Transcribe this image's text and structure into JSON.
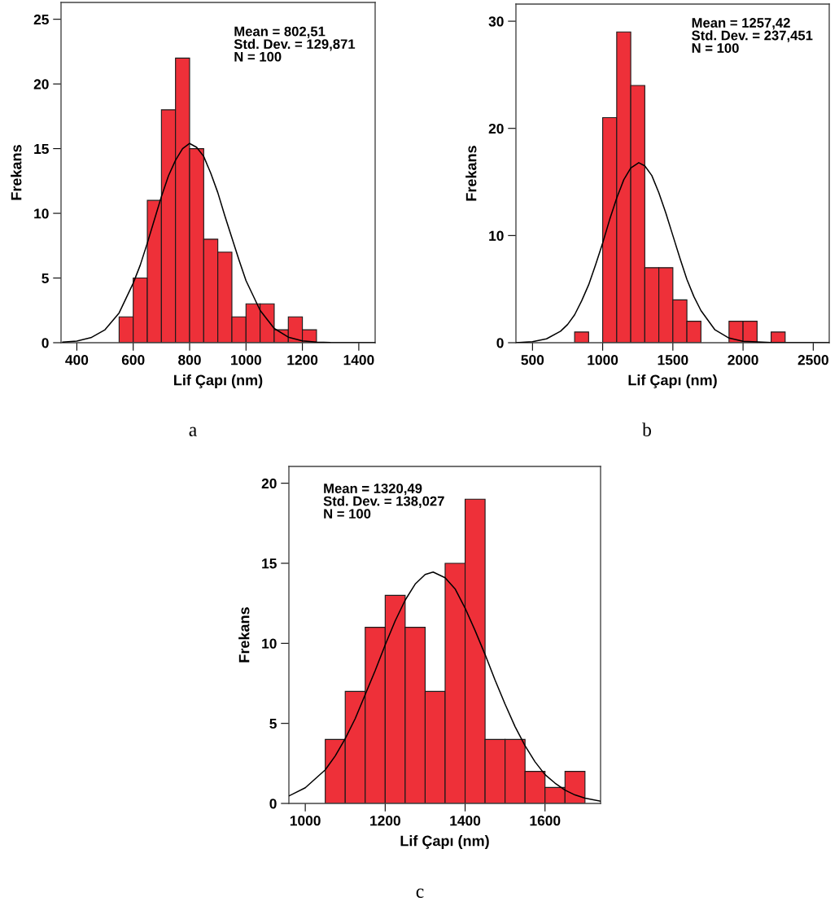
{
  "chart_data": [
    {
      "type": "histogram",
      "xlabel": "Lif Çapı (nm)",
      "ylabel": "Frekans",
      "xlim": [
        344,
        1458
      ],
      "ylim": [
        0,
        26.3
      ],
      "xticks": [
        400,
        600,
        800,
        1000,
        1200,
        1400
      ],
      "yticks": [
        0,
        5,
        10,
        15,
        20,
        25
      ],
      "grid": false,
      "legend": false,
      "annotations": [
        "Mean = 802,51\nStd. Dev. = 129,871\nN = 100",
        "a"
      ],
      "series": [
        {
          "color": "#ee3039",
          "bins": [
            550,
            600,
            650,
            700,
            750,
            800,
            850,
            900,
            950,
            1000,
            1050,
            1100,
            1150,
            1200,
            1250
          ],
          "values": [
            2,
            5,
            11,
            18,
            22,
            15,
            8,
            7,
            2,
            3,
            3,
            1,
            2,
            1
          ]
        },
        {
          "type": "line",
          "color": "#000000",
          "x": [
            350,
            400,
            450,
            500,
            550,
            600,
            625,
            650,
            675,
            700,
            725,
            750,
            775,
            800,
            825,
            850,
            875,
            900,
            925,
            950,
            975,
            1000,
            1050,
            1100,
            1150,
            1200,
            1250,
            1300,
            1400,
            1458
          ],
          "values": [
            0.04,
            0.13,
            0.39,
            1.0,
            2.3,
            4.6,
            6.0,
            7.7,
            9.5,
            11.3,
            12.9,
            14.1,
            15.0,
            15.4,
            15.1,
            14.4,
            13.1,
            11.6,
            9.8,
            8.1,
            6.4,
            4.8,
            2.5,
            1.1,
            0.43,
            0.14,
            0.04,
            0.01,
            0.0,
            0.0
          ]
        }
      ]
    },
    {
      "type": "histogram",
      "xlabel": "Lif Çapı (nm)",
      "ylabel": "Frekans",
      "xlim": [
        382,
        2614
      ],
      "ylim": [
        0,
        31.6
      ],
      "xticks": [
        500,
        1000,
        1500,
        2000,
        2500
      ],
      "yticks": [
        0,
        10,
        20,
        30
      ],
      "grid": false,
      "legend": false,
      "annotations": [
        "Mean = 1257,42\nStd. Dev. = 237,451\nN = 100",
        "b"
      ],
      "series": [
        {
          "color": "#ee3039",
          "bins": [
            800,
            900,
            1000,
            1100,
            1200,
            1300,
            1400,
            1500,
            1600,
            1700,
            1800,
            1900,
            2000,
            2100,
            2200,
            2300
          ],
          "values": [
            1,
            0,
            21,
            29,
            24,
            7,
            7,
            4,
            2,
            0,
            0,
            2,
            2,
            0,
            1
          ]
        },
        {
          "type": "line",
          "color": "#000000",
          "x": [
            382,
            450,
            500,
            600,
            700,
            750,
            800,
            850,
            900,
            950,
            1000,
            1050,
            1100,
            1150,
            1200,
            1257,
            1300,
            1350,
            1400,
            1450,
            1500,
            1550,
            1600,
            1650,
            1700,
            1800,
            1900,
            2000,
            2200,
            2614
          ],
          "values": [
            0.0,
            0.05,
            0.1,
            0.36,
            1.07,
            1.7,
            2.6,
            3.9,
            5.4,
            7.3,
            9.3,
            11.5,
            13.5,
            15.2,
            16.3,
            16.8,
            16.5,
            15.6,
            14.0,
            12.1,
            10.0,
            7.9,
            5.9,
            4.3,
            3.0,
            1.2,
            0.43,
            0.13,
            0.01,
            0.0
          ]
        }
      ]
    },
    {
      "type": "histogram",
      "xlabel": "Lif Çapı (nm)",
      "ylabel": "Frekans",
      "xlim": [
        959,
        1739
      ],
      "ylim": [
        0,
        21.05
      ],
      "xticks": [
        1000,
        1200,
        1400,
        1600
      ],
      "yticks": [
        0,
        5,
        10,
        15,
        20
      ],
      "grid": false,
      "legend": false,
      "annotations": [
        "Mean = 1320,49\nStd. Dev. = 138,027\nN = 100",
        "c"
      ],
      "series": [
        {
          "color": "#ee3039",
          "bins": [
            1050,
            1100,
            1150,
            1200,
            1250,
            1300,
            1350,
            1400,
            1450,
            1500,
            1550,
            1600,
            1650,
            1700
          ],
          "values": [
            4,
            7,
            11,
            13,
            11,
            7,
            15,
            19,
            4,
            4,
            2,
            1,
            2
          ]
        },
        {
          "type": "line",
          "color": "#000000",
          "x": [
            960,
            1000,
            1050,
            1075,
            1100,
            1125,
            1150,
            1175,
            1200,
            1225,
            1250,
            1275,
            1300,
            1320,
            1350,
            1375,
            1400,
            1425,
            1450,
            1475,
            1500,
            1525,
            1550,
            1575,
            1600,
            1625,
            1650,
            1675,
            1700,
            1739
          ],
          "values": [
            0.48,
            0.98,
            2.1,
            2.97,
            4.05,
            5.3,
            6.8,
            8.3,
            9.9,
            11.4,
            12.7,
            13.7,
            14.3,
            14.45,
            14.1,
            13.4,
            12.2,
            10.8,
            9.3,
            7.7,
            6.2,
            4.8,
            3.6,
            2.6,
            1.8,
            1.27,
            0.83,
            0.53,
            0.33,
            0.14
          ]
        }
      ]
    }
  ]
}
